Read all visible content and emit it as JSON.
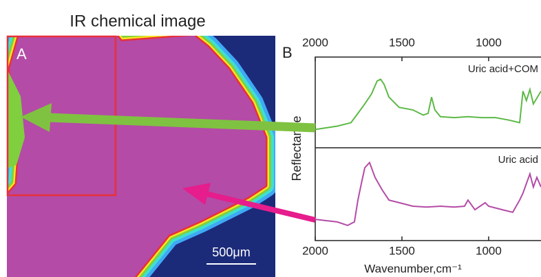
{
  "panel_a": {
    "title": "IR chemical image",
    "label": "A",
    "scale_bar": "500μm"
  },
  "panel_b": {
    "label": "B",
    "ylabel": "Reflectance"
  },
  "chart_data": [
    {
      "type": "line",
      "x": [
        2000,
        1873,
        1794,
        1754,
        1714,
        1675,
        1643,
        1623,
        1603,
        1575,
        1516,
        1437,
        1377,
        1349,
        1329,
        1310,
        1278,
        1198,
        1119,
        1040,
        960,
        881,
        821,
        802,
        782,
        762,
        742,
        698
      ],
      "series": [
        {
          "name": "Uric acid+COM",
          "color": "#5cb946",
          "values": [
            0.19,
            0.23,
            0.27,
            0.38,
            0.49,
            0.61,
            0.76,
            0.78,
            0.72,
            0.57,
            0.45,
            0.42,
            0.36,
            0.38,
            0.57,
            0.42,
            0.34,
            0.33,
            0.34,
            0.33,
            0.33,
            0.3,
            0.27,
            0.64,
            0.53,
            0.66,
            0.49,
            0.64
          ]
        }
      ],
      "xlim": [
        2000,
        698
      ],
      "ylim": [
        0,
        1
      ],
      "xticks": [
        2000,
        1500,
        1000
      ]
    },
    {
      "type": "line",
      "x": [
        2000,
        1873,
        1813,
        1774,
        1754,
        1734,
        1714,
        1687,
        1655,
        1615,
        1575,
        1516,
        1437,
        1357,
        1278,
        1198,
        1139,
        1119,
        1079,
        1020,
        1000,
        921,
        861,
        821,
        802,
        782,
        762,
        742,
        722,
        698
      ],
      "series": [
        {
          "name": "Uric acid",
          "color": "#b44ba6",
          "values": [
            0.22,
            0.19,
            0.15,
            0.19,
            0.44,
            0.63,
            0.81,
            0.87,
            0.7,
            0.56,
            0.44,
            0.41,
            0.37,
            0.36,
            0.37,
            0.36,
            0.37,
            0.44,
            0.33,
            0.41,
            0.37,
            0.33,
            0.3,
            0.44,
            0.52,
            0.63,
            0.74,
            0.59,
            0.7,
            0.59
          ]
        }
      ],
      "xlim": [
        2000,
        698
      ],
      "ylim": [
        0,
        1
      ],
      "xticks": [
        2000,
        1500,
        1000
      ],
      "xlabel": "Wavenumber,cm⁻¹"
    }
  ]
}
